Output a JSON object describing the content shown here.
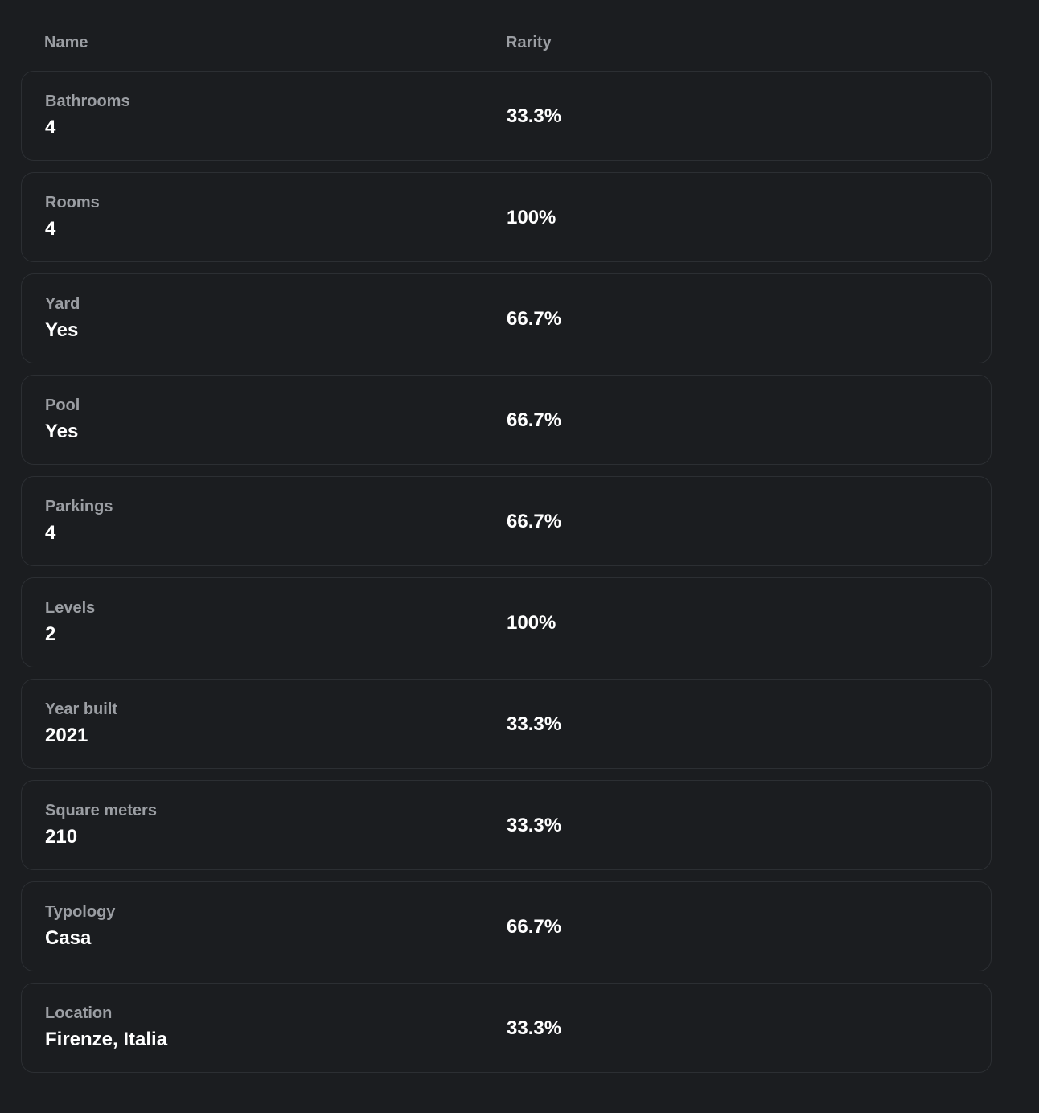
{
  "table": {
    "headers": {
      "name": "Name",
      "rarity": "Rarity"
    },
    "rows": [
      {
        "trait": "Bathrooms",
        "value": "4",
        "rarity": "33.3%"
      },
      {
        "trait": "Rooms",
        "value": "4",
        "rarity": "100%"
      },
      {
        "trait": "Yard",
        "value": "Yes",
        "rarity": "66.7%"
      },
      {
        "trait": "Pool",
        "value": "Yes",
        "rarity": "66.7%"
      },
      {
        "trait": "Parkings",
        "value": "4",
        "rarity": "66.7%"
      },
      {
        "trait": "Levels",
        "value": "2",
        "rarity": "100%"
      },
      {
        "trait": "Year built",
        "value": "2021",
        "rarity": "33.3%"
      },
      {
        "trait": "Square meters",
        "value": "210",
        "rarity": "33.3%"
      },
      {
        "trait": "Typology",
        "value": "Casa",
        "rarity": "66.7%"
      },
      {
        "trait": "Location",
        "value": "Firenze, Italia",
        "rarity": "33.3%"
      }
    ]
  }
}
